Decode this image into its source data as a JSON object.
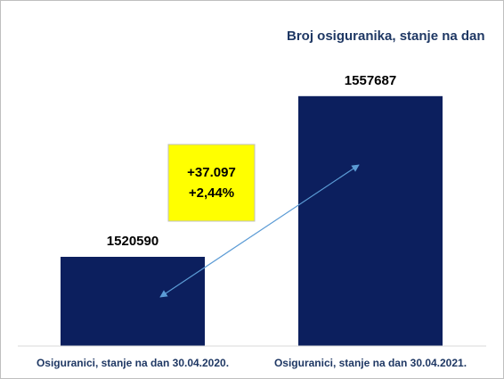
{
  "chart_data": {
    "type": "bar",
    "title": "Broj osiguranika, stanje na dan",
    "categories": [
      "Osiguranici, stanje na dan 30.04.2020.",
      "Osiguranici, stanje na dan 30.04.2021."
    ],
    "values": [
      1520590,
      1557687
    ],
    "color": "#0c1f5e",
    "ylim": [
      1500000,
      1570000
    ],
    "annotation": {
      "lines": [
        "+37.097",
        "+2,44%"
      ],
      "color": "#ffff00"
    }
  }
}
